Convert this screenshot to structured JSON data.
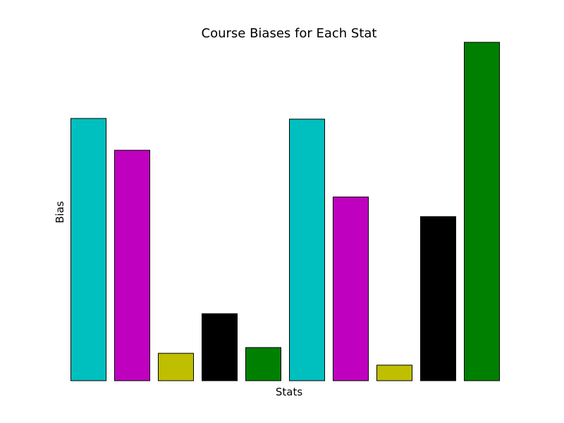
{
  "chart_data": {
    "type": "bar",
    "title": "Course Biases for Each Stat",
    "xlabel": "Stats",
    "ylabel": "Bias",
    "ylim": [
      0,
      100
    ],
    "grid": false,
    "legend": "none",
    "bars": [
      {
        "value": 77.5,
        "color": "#00bfbf"
      },
      {
        "value": 68.1,
        "color": "#bf00bf"
      },
      {
        "value": 8.1,
        "color": "#bfbf00"
      },
      {
        "value": 19.8,
        "color": "#000000"
      },
      {
        "value": 9.8,
        "color": "#008000"
      },
      {
        "value": 77.3,
        "color": "#00bfbf"
      },
      {
        "value": 54.3,
        "color": "#bf00bf"
      },
      {
        "value": 4.6,
        "color": "#bfbf00"
      },
      {
        "value": 48.5,
        "color": "#000000"
      },
      {
        "value": 100,
        "color": "#008000"
      }
    ]
  }
}
